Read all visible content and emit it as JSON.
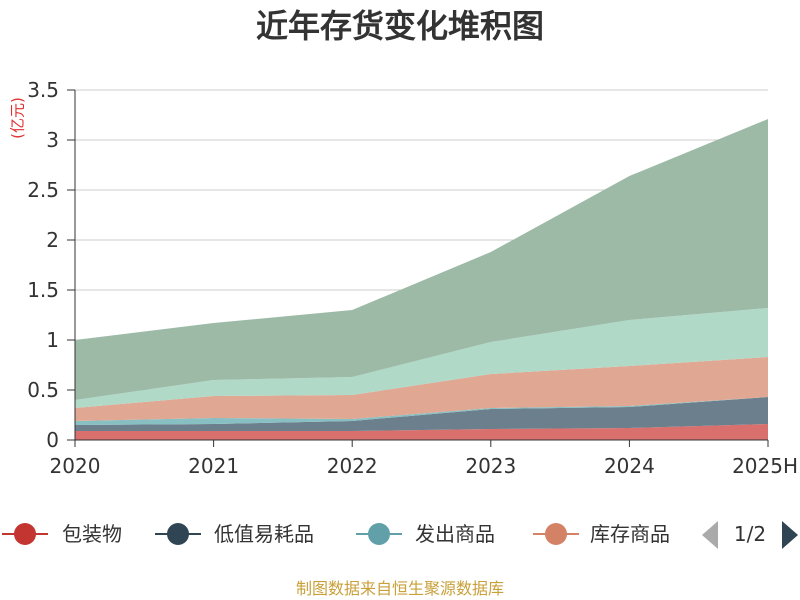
{
  "chart_data": {
    "type": "area",
    "stacked": true,
    "title": "近年存货变化堆积图",
    "unit_label": "(亿元)",
    "categories": [
      "2020",
      "2021",
      "2022",
      "2023",
      "2024",
      "2025H"
    ],
    "ylim": [
      0,
      3.5
    ],
    "yticks": [
      "0",
      "0.5",
      "1",
      "1.5",
      "2",
      "2.5",
      "3",
      "3.5"
    ],
    "grid": true,
    "series": [
      {
        "name": "包装物",
        "color": "#d9706e",
        "values": [
          0.09,
          0.09,
          0.09,
          0.11,
          0.12,
          0.16
        ]
      },
      {
        "name": "低值易耗品",
        "color": "#6c7f8c",
        "values": [
          0.06,
          0.07,
          0.1,
          0.2,
          0.21,
          0.27
        ]
      },
      {
        "name": "发出商品",
        "color": "#87bfc2",
        "values": [
          0.04,
          0.06,
          0.02,
          0.01,
          0.01,
          0.0
        ]
      },
      {
        "name": "库存商品",
        "color": "#e0a792",
        "values": [
          0.13,
          0.22,
          0.24,
          0.34,
          0.4,
          0.4
        ]
      },
      {
        "name": "",
        "color": "#b0d9c8",
        "values": [
          0.08,
          0.16,
          0.18,
          0.32,
          0.46,
          0.49
        ]
      },
      {
        "name": "",
        "color": "#9dbaa7",
        "values": [
          0.6,
          0.57,
          0.67,
          0.9,
          1.44,
          1.89
        ]
      }
    ]
  },
  "legend": {
    "items": [
      {
        "label": "包装物",
        "color": "#c23531"
      },
      {
        "label": "低值易耗品",
        "color": "#2f4554"
      },
      {
        "label": "发出商品",
        "color": "#61a0a8"
      },
      {
        "label": "库存商品",
        "color": "#d48265"
      }
    ],
    "page": "1/2"
  },
  "source": "制图数据来自恒生聚源数据库"
}
